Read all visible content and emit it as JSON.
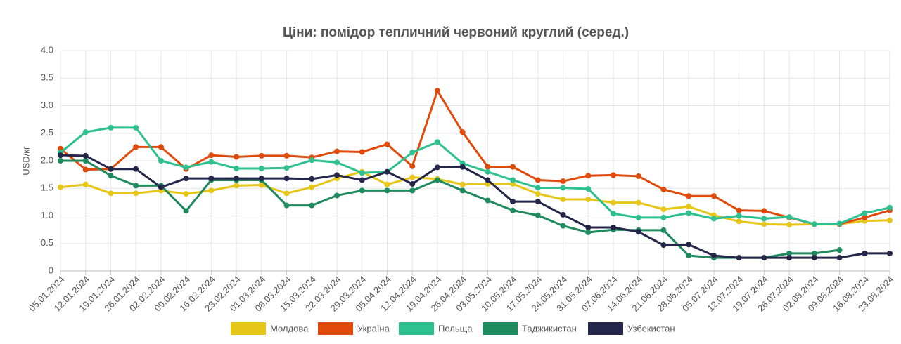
{
  "chart_data": {
    "type": "line",
    "title": "Ціни: помідор тепличний червоний круглий (серед.)",
    "y_label": "USD/кг",
    "categories": [
      "05.01.2024",
      "12.01.2024",
      "19.01.2024",
      "26.01.2024",
      "02.02.2024",
      "09.02.2024",
      "16.02.2024",
      "23.02.2024",
      "01.03.2024",
      "08.03.2024",
      "15.03.2024",
      "22.03.2024",
      "29.03.2024",
      "05.04.2024",
      "12.04.2024",
      "19.04.2024",
      "26.04.2024",
      "03.05.2024",
      "10.05.2024",
      "17.05.2024",
      "24.05.2024",
      "31.05.2024",
      "07.06.2024",
      "14.06.2024",
      "21.06.2024",
      "28.06.2024",
      "05.07.2024",
      "12.07.2024",
      "19.07.2024",
      "26.07.2024",
      "02.08.2024",
      "09.08.2024",
      "16.08.2024",
      "23.08.2024"
    ],
    "series": [
      {
        "name": "Молдова",
        "color": "#e6c619",
        "values": [
          1.52,
          1.57,
          1.41,
          1.41,
          1.46,
          1.4,
          1.46,
          1.55,
          1.56,
          1.41,
          1.52,
          1.68,
          1.8,
          1.57,
          1.7,
          1.67,
          1.57,
          1.58,
          1.58,
          1.4,
          1.3,
          1.3,
          1.24,
          1.24,
          1.12,
          1.17,
          1.01,
          0.9,
          0.85,
          0.84,
          0.85,
          0.85,
          0.91,
          0.92
        ]
      },
      {
        "name": "Україна",
        "color": "#e04a0a",
        "values": [
          2.22,
          1.84,
          1.85,
          2.25,
          2.25,
          1.85,
          2.1,
          2.07,
          2.09,
          2.09,
          2.06,
          2.17,
          2.16,
          2.3,
          1.9,
          3.27,
          2.52,
          1.89,
          1.89,
          1.65,
          1.63,
          1.73,
          1.74,
          1.72,
          1.48,
          1.36,
          1.36,
          1.1,
          1.09,
          0.97,
          0.85,
          0.85,
          0.97,
          1.1
        ]
      },
      {
        "name": "Польща",
        "color": "#2ec08e",
        "values": [
          2.15,
          2.52,
          2.6,
          2.6,
          2.0,
          1.88,
          1.98,
          1.86,
          1.86,
          1.87,
          2.01,
          1.97,
          1.78,
          1.8,
          2.15,
          2.34,
          1.95,
          1.8,
          1.65,
          1.51,
          1.51,
          1.49,
          1.04,
          0.97,
          0.97,
          1.05,
          0.95,
          1.0,
          0.95,
          0.98,
          0.85,
          0.86,
          1.05,
          1.15
        ]
      },
      {
        "name": "Таджикистан",
        "color": "#1e8a5e",
        "values": [
          2.0,
          2.0,
          1.73,
          1.55,
          1.55,
          1.09,
          1.65,
          1.65,
          1.65,
          1.19,
          1.19,
          1.37,
          1.46,
          1.46,
          1.46,
          1.65,
          1.46,
          1.28,
          1.1,
          1.01,
          0.82,
          0.7,
          0.75,
          0.74,
          0.74,
          0.28,
          0.24,
          0.24,
          0.24,
          0.32,
          0.32,
          0.38,
          null,
          null
        ]
      },
      {
        "name": "Узбекистан",
        "color": "#24264a",
        "values": [
          2.1,
          2.09,
          1.85,
          1.85,
          1.52,
          1.68,
          1.68,
          1.68,
          1.68,
          1.68,
          1.67,
          1.74,
          1.65,
          1.8,
          1.58,
          1.88,
          1.89,
          1.65,
          1.26,
          1.26,
          1.02,
          0.79,
          0.79,
          0.71,
          0.47,
          0.48,
          0.28,
          0.24,
          0.24,
          0.24,
          0.24,
          0.24,
          0.32,
          0.32
        ]
      }
    ],
    "ylim": [
      0,
      4
    ],
    "yticks": [
      0,
      0.5,
      {
        "value": 1,
        "label": "1.0"
      },
      1.5,
      {
        "value": 2,
        "label": "2.0"
      },
      2.5,
      {
        "value": 3,
        "label": "3.0"
      },
      3.5,
      {
        "value": 4,
        "label": "4.0"
      }
    ],
    "grid": true
  }
}
